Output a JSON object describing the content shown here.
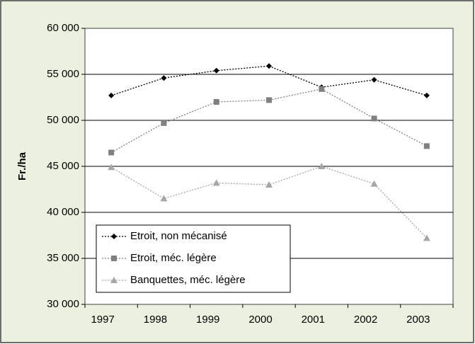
{
  "chart_data": {
    "type": "line",
    "y_label": "Fr./ha",
    "categories": [
      "1997",
      "1998",
      "1999",
      "2000",
      "2001",
      "2002",
      "2003"
    ],
    "series": [
      {
        "name": "Etroit, non mécanisé",
        "color": "#000000",
        "marker": "diamond",
        "values": [
          52700,
          54600,
          55400,
          55900,
          53600,
          54400,
          52700
        ]
      },
      {
        "name": "Etroit, méc. légère",
        "color": "#808080",
        "marker": "square",
        "values": [
          46500,
          49700,
          52000,
          52200,
          53400,
          50200,
          47200
        ]
      },
      {
        "name": "Banquettes, méc. légère",
        "color": "#a6a6a6",
        "marker": "triangle",
        "values": [
          44900,
          41500,
          43200,
          43000,
          45000,
          43100,
          37200
        ]
      }
    ],
    "ylim": [
      30000,
      60000
    ],
    "yticks": [
      {
        "value": 30000,
        "label": "30 000"
      },
      {
        "value": 35000,
        "label": "35 000"
      },
      {
        "value": 40000,
        "label": "40 000"
      },
      {
        "value": 45000,
        "label": "45 000"
      },
      {
        "value": 50000,
        "label": "50 000"
      },
      {
        "value": 55000,
        "label": "55 000"
      },
      {
        "value": 60000,
        "label": "60 000"
      }
    ],
    "grid": true,
    "legend": "lower left"
  }
}
